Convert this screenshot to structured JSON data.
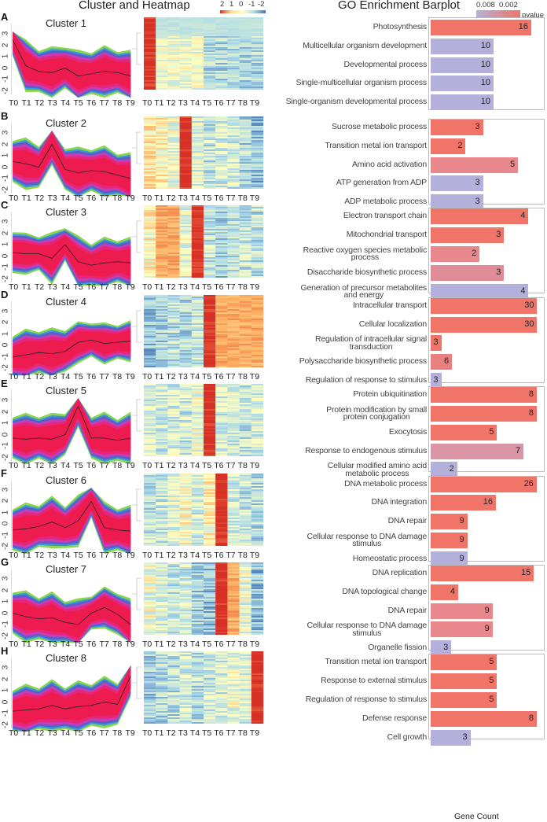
{
  "headers": {
    "left": "Cluster and Heatmap",
    "right": "GO Enrichment Barplot",
    "x_axis": "Gene Count"
  },
  "heatmap_legend": {
    "ticks": [
      "2",
      "1",
      "0",
      "-1",
      "-2"
    ],
    "colors": [
      "#d73027",
      "#fee090",
      "#ffffbf",
      "#abd9e9",
      "#4575b4"
    ]
  },
  "pvalue_legend": {
    "title": "pvalue",
    "ticks": [
      "0.008",
      "0.002"
    ],
    "low_color": "#b3b0dc",
    "high_color": "#f07468"
  },
  "time_points": [
    "T0",
    "T1",
    "T2",
    "T3",
    "T4",
    "T5",
    "T6",
    "T7",
    "T8",
    "T9"
  ],
  "y_ticks": [
    "3",
    "2",
    "1",
    "0",
    "-1",
    "-2"
  ],
  "chart_data": [
    {
      "type": "line+heatmap+bar",
      "panel": "A",
      "title": "Cluster 1",
      "mean": [
        2.5,
        0.2,
        -0.3,
        -0.4,
        0,
        -0.7,
        -0.5,
        -0.3,
        -0.4,
        -0.7
      ],
      "peak": [
        0
      ],
      "go": [
        {
          "term": "Photosynthesis",
          "count": 16,
          "color": "#f07468"
        },
        {
          "term": "Multicellular organism development",
          "count": 10,
          "color": "#b3b0dc"
        },
        {
          "term": "Developmental process",
          "count": 10,
          "color": "#b3b0dc"
        },
        {
          "term": "Single-multicellular organism process",
          "count": 10,
          "color": "#b3b0dc"
        },
        {
          "term": "Single-organism developmental process",
          "count": 10,
          "color": "#b3b0dc"
        }
      ]
    },
    {
      "type": "line+heatmap+bar",
      "panel": "B",
      "title": "Cluster 2",
      "mean": [
        0.5,
        0.3,
        0,
        2,
        -0.2,
        -0.5,
        -0.3,
        -0.4,
        -0.7,
        -1
      ],
      "peak": [
        3
      ],
      "go": [
        {
          "term": "Sucrose metabolic process",
          "count": 3,
          "color": "#f07468"
        },
        {
          "term": "Transition metal ion transport",
          "count": 2,
          "color": "#f07468"
        },
        {
          "term": "Amino acid activation",
          "count": 5,
          "color": "#e8878c"
        },
        {
          "term": "ATP generation from ADP",
          "count": 3,
          "color": "#b3b0dc"
        },
        {
          "term": "ADP metabolic process",
          "count": 3,
          "color": "#b3b0dc"
        }
      ]
    },
    {
      "type": "line+heatmap+bar",
      "panel": "C",
      "title": "Cluster 3",
      "mean": [
        0.3,
        0.2,
        0.2,
        -0.2,
        1,
        -0.5,
        -0.8,
        -0.6,
        -0.5,
        -0.6
      ],
      "peak": [
        4,
        1,
        2
      ],
      "go": [
        {
          "term": "Electron transport chain",
          "count": 4,
          "color": "#f07468"
        },
        {
          "term": "Mitochondrial transport",
          "count": 3,
          "color": "#f07468"
        },
        {
          "term": "Reactive oxygen species metabolic\nprocess",
          "count": 2,
          "color": "#e8878c"
        },
        {
          "term": "Disaccharide biosynthetic process",
          "count": 3,
          "color": "#e08c96"
        },
        {
          "term": "Generation of precursor metabolites\nand energy",
          "count": 4,
          "color": "#b3b0dc"
        }
      ]
    },
    {
      "type": "line+heatmap+bar",
      "panel": "D",
      "title": "Cluster 4",
      "mean": [
        -1,
        -0.8,
        -0.6,
        -0.7,
        -0.5,
        0.3,
        0.5,
        0.2,
        0.3,
        0.4
      ],
      "peak": [
        5,
        6,
        7,
        8,
        9
      ],
      "go": [
        {
          "term": "Intracellular transport",
          "count": 30,
          "color": "#f07468"
        },
        {
          "term": "Cellular localization",
          "count": 30,
          "color": "#f07468"
        },
        {
          "term": "Regulation of intracellular signal\ntransduction",
          "count": 3,
          "color": "#f07468"
        },
        {
          "term": "Polysaccharide biosynthetic process",
          "count": 6,
          "color": "#ea7f80"
        },
        {
          "term": "Regulation of response to stimulus",
          "count": 3,
          "color": "#b3b0dc"
        }
      ]
    },
    {
      "type": "line+heatmap+bar",
      "panel": "E",
      "title": "Cluster 5",
      "mean": [
        -0.3,
        -0.4,
        -0.3,
        -0.4,
        0,
        2.5,
        -0.3,
        -0.3,
        -0.5,
        -0.3
      ],
      "peak": [
        5
      ],
      "go": [
        {
          "term": "Protein ubiquitination",
          "count": 8,
          "color": "#f07468"
        },
        {
          "term": "Protein modification by small\nprotein conjugation",
          "count": 8,
          "color": "#f07468"
        },
        {
          "term": "Exocytosis",
          "count": 5,
          "color": "#f07468"
        },
        {
          "term": "Response to endogenous stimulus",
          "count": 7,
          "color": "#d994a6"
        },
        {
          "term": "Cellular modified amino acid\nmetabolic process",
          "count": 2,
          "color": "#b3b0dc"
        }
      ]
    },
    {
      "type": "line+heatmap+bar",
      "panel": "F",
      "title": "Cluster 6",
      "mean": [
        -0.5,
        -0.4,
        -0.2,
        0.2,
        -0.3,
        0.3,
        2,
        -0.3,
        -0.5,
        -0.6
      ],
      "peak": [
        6
      ],
      "go": [
        {
          "term": "DNA metabolic process",
          "count": 26,
          "color": "#f07468"
        },
        {
          "term": "DNA integration",
          "count": 16,
          "color": "#f07468"
        },
        {
          "term": "DNA repair",
          "count": 9,
          "color": "#f07468"
        },
        {
          "term": "Cellular response to DNA damage\nstimulus",
          "count": 9,
          "color": "#f07468"
        },
        {
          "term": "Homeostatic process",
          "count": 9,
          "color": "#b3b0dc"
        }
      ]
    },
    {
      "type": "line+heatmap+bar",
      "panel": "G",
      "title": "Cluster 7",
      "mean": [
        0,
        -0.3,
        -0.5,
        -0.4,
        -0.8,
        -1,
        0,
        0.5,
        -0.1,
        -1
      ],
      "peak": [
        6,
        7
      ],
      "go": [
        {
          "term": "DNA replication",
          "count": 15,
          "color": "#f07468"
        },
        {
          "term": "DNA topological change",
          "count": 4,
          "color": "#f07468"
        },
        {
          "term": "DNA repair",
          "count": 9,
          "color": "#e8878c"
        },
        {
          "term": "Cellular response to DNA damage\nstimulus",
          "count": 9,
          "color": "#e8878c"
        },
        {
          "term": "Organelle fission",
          "count": 3,
          "color": "#b3b0dc"
        }
      ]
    },
    {
      "type": "line+heatmap+bar",
      "panel": "H",
      "title": "Cluster 8",
      "mean": [
        -0.8,
        -0.7,
        -0.6,
        -0.3,
        -0.6,
        -0.4,
        -0.3,
        0,
        -0.2,
        2.3
      ],
      "peak": [
        9
      ],
      "go": [
        {
          "term": "Transition metal ion transport",
          "count": 5,
          "color": "#f07468"
        },
        {
          "term": "Response to external stimulus",
          "count": 5,
          "color": "#f07468"
        },
        {
          "term": "Regulation of response to stimulus",
          "count": 5,
          "color": "#f07468"
        },
        {
          "term": "Defense response",
          "count": 8,
          "color": "#f07468"
        },
        {
          "term": "Cell growth",
          "count": 3,
          "color": "#b3b0dc"
        }
      ]
    }
  ]
}
